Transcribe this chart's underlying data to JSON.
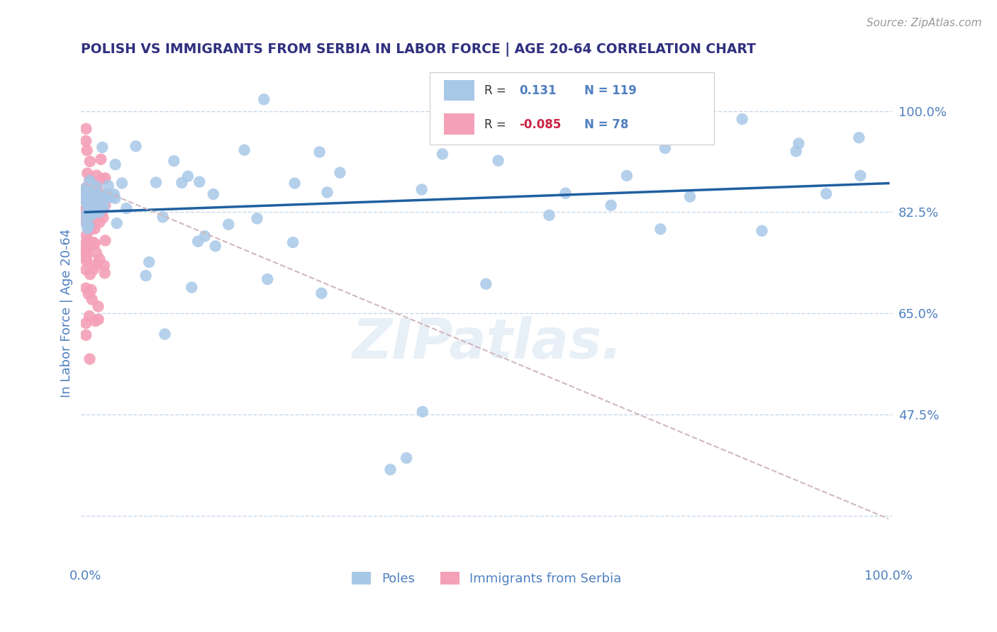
{
  "title": "POLISH VS IMMIGRANTS FROM SERBIA IN LABOR FORCE | AGE 20-64 CORRELATION CHART",
  "source": "Source: ZipAtlas.com",
  "ylabel": "In Labor Force | Age 20-64",
  "r_blue": 0.131,
  "n_blue": 119,
  "r_pink": -0.085,
  "n_pink": 78,
  "blue_color": "#a8c8e8",
  "blue_line_color": "#2060a0",
  "pink_color": "#f4a0b8",
  "grid_color": "#c8d8e8",
  "title_color": "#303080",
  "axis_label_color": "#5080c0",
  "watermark": "ZIPatlas.",
  "legend_label_blue": "Poles",
  "legend_label_pink": "Immigrants from Serbia",
  "ytick_vals": [
    0.3,
    0.475,
    0.65,
    0.825,
    1.0
  ],
  "ytick_labels": [
    "",
    "47.5%",
    "65.0%",
    "82.5%",
    "100.0%"
  ],
  "ylim": [
    0.22,
    1.08
  ],
  "xlim": [
    -0.005,
    1.005
  ]
}
